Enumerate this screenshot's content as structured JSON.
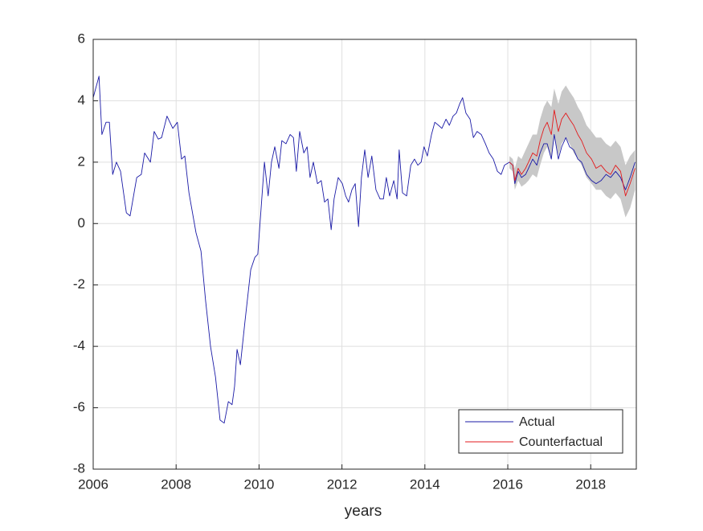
{
  "chart_data": {
    "type": "line",
    "xlabel": "years",
    "xlim": [
      2006,
      2019.1
    ],
    "ylim": [
      -8,
      6
    ],
    "xticks": [
      2006,
      2008,
      2010,
      2012,
      2014,
      2016,
      2018
    ],
    "yticks": [
      -8,
      -6,
      -4,
      -2,
      0,
      2,
      4,
      6
    ],
    "grid": true,
    "legend": "lower right",
    "band": {
      "color": "#c8c8c8",
      "x": [
        2016.04,
        2016.12,
        2016.17,
        2016.25,
        2016.33,
        2016.43,
        2016.5,
        2016.6,
        2016.7,
        2016.78,
        2016.87,
        2016.95,
        2017.05,
        2017.12,
        2017.22,
        2017.3,
        2017.4,
        2017.49,
        2017.59,
        2017.69,
        2017.78,
        2017.9,
        2018.02,
        2018.13,
        2018.25,
        2018.37,
        2018.48,
        2018.6,
        2018.72,
        2018.84,
        2018.95,
        2019.07
      ],
      "upper": [
        2.2,
        2.1,
        1.8,
        2.2,
        2.1,
        2.4,
        2.6,
        2.9,
        2.9,
        3.4,
        3.8,
        4.0,
        3.8,
        4.4,
        3.9,
        4.3,
        4.5,
        4.3,
        4.1,
        3.8,
        3.6,
        3.2,
        3.0,
        2.8,
        2.8,
        2.6,
        2.5,
        2.7,
        2.5,
        1.9,
        2.2,
        2.4
      ],
      "lower": [
        1.8,
        1.7,
        1.1,
        1.4,
        1.2,
        1.3,
        1.4,
        1.6,
        1.5,
        1.9,
        2.3,
        2.5,
        2.1,
        2.9,
        2.2,
        2.6,
        2.8,
        2.6,
        2.3,
        2.1,
        1.9,
        1.5,
        1.3,
        1.1,
        1.1,
        0.9,
        0.8,
        1.0,
        0.8,
        0.2,
        0.5,
        1.1
      ]
    },
    "series": [
      {
        "name": "Actual",
        "color": "#1a1aa6",
        "x": [
          2006.0,
          2006.14,
          2006.21,
          2006.31,
          2006.39,
          2006.47,
          2006.56,
          2006.66,
          2006.8,
          2006.89,
          2007.05,
          2007.16,
          2007.24,
          2007.38,
          2007.47,
          2007.57,
          2007.65,
          2007.78,
          2007.92,
          2008.03,
          2008.13,
          2008.21,
          2008.31,
          2008.48,
          2008.6,
          2008.71,
          2008.83,
          2008.95,
          2009.06,
          2009.16,
          2009.26,
          2009.35,
          2009.41,
          2009.47,
          2009.55,
          2009.66,
          2009.8,
          2009.9,
          2009.97,
          2010.13,
          2010.22,
          2010.3,
          2010.38,
          2010.48,
          2010.55,
          2010.65,
          2010.75,
          2010.83,
          2010.9,
          2010.98,
          2011.08,
          2011.16,
          2011.23,
          2011.31,
          2011.41,
          2011.5,
          2011.58,
          2011.66,
          2011.74,
          2011.81,
          2011.91,
          2012.01,
          2012.09,
          2012.16,
          2012.24,
          2012.32,
          2012.4,
          2012.47,
          2012.55,
          2012.63,
          2012.72,
          2012.82,
          2012.92,
          2013.0,
          2013.07,
          2013.15,
          2013.25,
          2013.33,
          2013.38,
          2013.46,
          2013.56,
          2013.66,
          2013.75,
          2013.83,
          2013.91,
          2013.98,
          2014.06,
          2014.16,
          2014.24,
          2014.33,
          2014.41,
          2014.51,
          2014.59,
          2014.68,
          2014.76,
          2014.84,
          2014.91,
          2014.99,
          2015.09,
          2015.17,
          2015.26,
          2015.36,
          2015.46,
          2015.55,
          2015.65,
          2015.75,
          2015.84,
          2015.92,
          2016.04,
          2016.12,
          2016.17,
          2016.25,
          2016.33,
          2016.43,
          2016.5,
          2016.6,
          2016.7,
          2016.78,
          2016.87,
          2016.95,
          2017.05,
          2017.12,
          2017.22,
          2017.3,
          2017.4,
          2017.49,
          2017.59,
          2017.69,
          2017.78,
          2017.9,
          2018.02,
          2018.13,
          2018.25,
          2018.37,
          2018.48,
          2018.6,
          2018.72,
          2018.84,
          2018.95,
          2019.07
        ],
        "values": [
          4.1,
          4.8,
          2.9,
          3.3,
          3.3,
          1.6,
          2.0,
          1.7,
          0.35,
          0.25,
          1.5,
          1.6,
          2.3,
          2.0,
          3.0,
          2.75,
          2.8,
          3.5,
          3.1,
          3.3,
          2.1,
          2.2,
          1.0,
          -0.3,
          -0.9,
          -2.5,
          -4.0,
          -5.0,
          -6.4,
          -6.5,
          -5.8,
          -5.9,
          -5.3,
          -4.1,
          -4.6,
          -3.2,
          -1.5,
          -1.1,
          -1.0,
          2.0,
          0.9,
          2.0,
          2.5,
          1.8,
          2.7,
          2.6,
          2.9,
          2.8,
          1.7,
          3.0,
          2.3,
          2.5,
          1.5,
          2.0,
          1.3,
          1.4,
          0.7,
          0.8,
          -0.2,
          0.8,
          1.5,
          1.3,
          0.9,
          0.7,
          1.1,
          1.3,
          -0.1,
          1.5,
          2.4,
          1.5,
          2.2,
          1.1,
          0.8,
          0.8,
          1.5,
          0.9,
          1.4,
          0.8,
          2.4,
          1.0,
          0.9,
          1.9,
          2.1,
          1.9,
          2.0,
          2.5,
          2.2,
          2.9,
          3.3,
          3.2,
          3.1,
          3.4,
          3.2,
          3.5,
          3.6,
          3.9,
          4.1,
          3.6,
          3.4,
          2.8,
          3.0,
          2.9,
          2.6,
          2.3,
          2.1,
          1.7,
          1.6,
          1.9,
          2.0,
          1.9,
          1.3,
          1.7,
          1.5,
          1.6,
          1.8,
          2.1,
          1.9,
          2.3,
          2.6,
          2.6,
          2.1,
          2.9,
          2.1,
          2.5,
          2.8,
          2.5,
          2.4,
          2.1,
          2.0,
          1.6,
          1.4,
          1.3,
          1.4,
          1.6,
          1.5,
          1.7,
          1.5,
          1.1,
          1.5,
          2.0
        ]
      },
      {
        "name": "Counterfactual",
        "color": "#e31a1c",
        "x": [
          2016.04,
          2016.12,
          2016.17,
          2016.25,
          2016.33,
          2016.43,
          2016.5,
          2016.6,
          2016.7,
          2016.78,
          2016.87,
          2016.95,
          2017.05,
          2017.12,
          2017.22,
          2017.3,
          2017.4,
          2017.49,
          2017.59,
          2017.69,
          2017.78,
          2017.9,
          2018.02,
          2018.13,
          2018.25,
          2018.37,
          2018.48,
          2018.6,
          2018.72,
          2018.84,
          2018.95,
          2019.07
        ],
        "values": [
          2.0,
          1.9,
          1.4,
          1.8,
          1.6,
          1.8,
          2.0,
          2.3,
          2.2,
          2.7,
          3.1,
          3.3,
          2.9,
          3.7,
          3.0,
          3.4,
          3.6,
          3.4,
          3.2,
          2.9,
          2.7,
          2.3,
          2.1,
          1.8,
          1.9,
          1.7,
          1.6,
          1.9,
          1.7,
          0.9,
          1.3,
          1.8
        ]
      }
    ]
  }
}
